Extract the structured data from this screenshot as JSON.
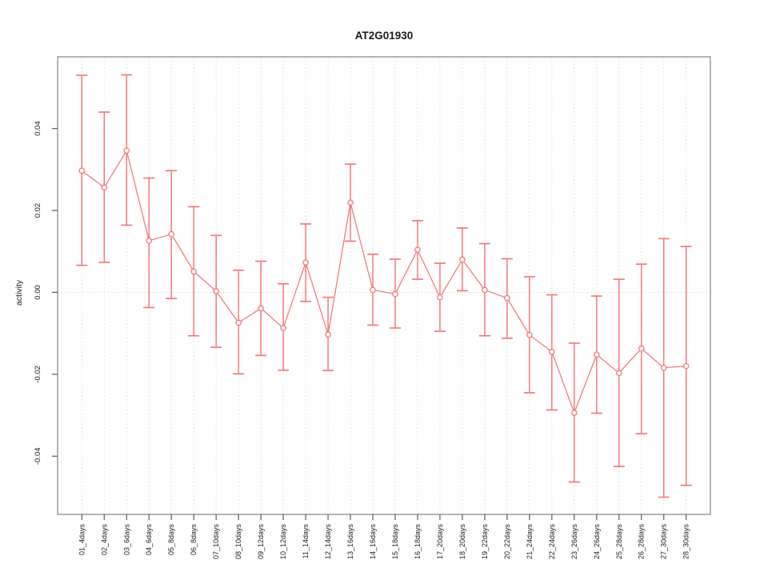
{
  "figure": {
    "title": "AT2G01930",
    "ylabel": "activity"
  },
  "colors": {
    "series": "#f87070",
    "grid": "#dedede",
    "box": "#8c8c8c",
    "axis": "#5a5a5a",
    "text": "#1a1a1a",
    "marker_fill": "#ffffff",
    "background": "#ffffff"
  },
  "chart_data": {
    "type": "line",
    "subtype": "errorbar",
    "title": "AT2G01930",
    "xlabel": "",
    "ylabel": "activity",
    "legend": "none",
    "grid": "vertical dotted gridlines at each category; dotted horizontal line at y=0",
    "categories": [
      "01_4days",
      "02_4days",
      "03_6days",
      "04_6days",
      "05_8days",
      "06_8days",
      "07_10days",
      "08_10days",
      "09_12days",
      "10_12days",
      "11_14days",
      "12_14days",
      "13_16days",
      "14_16days",
      "15_18days",
      "16_18days",
      "17_20days",
      "18_20days",
      "19_22days",
      "20_22days",
      "21_24days",
      "22_24days",
      "23_26days",
      "24_26days",
      "25_28days",
      "26_28days",
      "27_30days",
      "28_30days"
    ],
    "series": [
      {
        "name": "activity",
        "values": [
          0.0297,
          0.0256,
          0.0346,
          0.0126,
          0.0142,
          0.0051,
          0.0003,
          -0.0074,
          -0.0039,
          -0.0087,
          0.0073,
          -0.0103,
          0.0219,
          0.0006,
          -0.0004,
          0.0104,
          -0.0012,
          0.008,
          0.0006,
          -0.0014,
          -0.0104,
          -0.0145,
          -0.0294,
          -0.0152,
          -0.0197,
          -0.0137,
          -0.0184,
          -0.018
        ],
        "upper": [
          0.053,
          0.044,
          0.0531,
          0.0279,
          0.0297,
          0.0209,
          0.0139,
          0.0054,
          0.0076,
          0.0021,
          0.0167,
          -0.0012,
          0.0313,
          0.0093,
          0.0081,
          0.0175,
          0.0071,
          0.0157,
          0.0119,
          0.0082,
          0.0038,
          -0.0006,
          -0.0124,
          -0.0009,
          0.0032,
          0.0069,
          0.0131,
          0.0112
        ],
        "lower": [
          0.0066,
          0.0073,
          0.0164,
          -0.0037,
          -0.0015,
          -0.0106,
          -0.0134,
          -0.0199,
          -0.0154,
          -0.019,
          -0.0022,
          -0.0191,
          0.0125,
          -0.008,
          -0.0087,
          0.0032,
          -0.0095,
          0.0004,
          -0.0106,
          -0.0112,
          -0.0245,
          -0.0287,
          -0.0463,
          -0.0295,
          -0.0425,
          -0.0345,
          -0.05,
          -0.0471
        ]
      }
    ],
    "yticks": [
      0.04,
      0.02,
      0.0,
      -0.02,
      -0.04
    ],
    "ytick_labels": [
      "0.04",
      "0.02",
      "0.00",
      "-0.02",
      "-0.04"
    ],
    "ylim": [
      -0.0542,
      0.0575
    ],
    "zero_line": 0
  }
}
